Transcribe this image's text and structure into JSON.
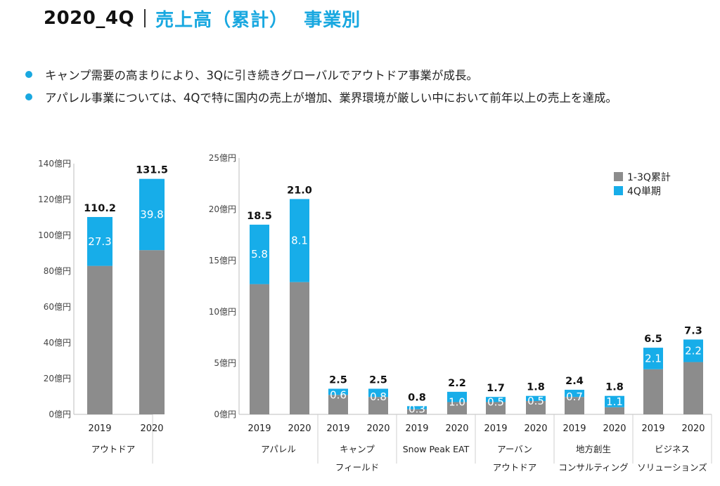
{
  "header": {
    "period": "2020_4Q",
    "title": "売上高（累計）",
    "subtitle": "事業別"
  },
  "bullets": [
    "キャンプ需要の高まりにより、3Qに引き続きグローバルでアウトドア事業が成長。",
    "アパレル事業については、4Qで特に国内の売上が増加、業界環境が厳しい中において前年以上の売上を達成。"
  ],
  "colors": {
    "cumulative": "#8c8c8c",
    "q4": "#17ade9",
    "accent": "#19a8e0"
  },
  "chart_data": [
    {
      "type": "bar",
      "stacked": true,
      "ylim": [
        0,
        140
      ],
      "yticks": [
        "0億円",
        "20億円",
        "40億円",
        "60億円",
        "80億円",
        "100億円",
        "120億円",
        "140億円"
      ],
      "groups": [
        {
          "label": [
            "アウトドア"
          ],
          "years": [
            "2019",
            "2020"
          ],
          "totals": [
            "110.2",
            "131.5"
          ],
          "cumulative": [
            82.9,
            91.7
          ],
          "q4": [
            "27.3",
            "39.8"
          ]
        }
      ]
    },
    {
      "type": "bar",
      "stacked": true,
      "ylim": [
        0,
        25
      ],
      "yticks": [
        "0億円",
        "5億円",
        "10億円",
        "15億円",
        "20億円",
        "25億円"
      ],
      "legend": [
        "1-3Q累計",
        "4Q単期"
      ],
      "legend_position": "top-right",
      "groups": [
        {
          "label": [
            "アパレル"
          ],
          "years": [
            "2019",
            "2020"
          ],
          "totals": [
            "18.5",
            "21.0"
          ],
          "cumulative": [
            12.7,
            12.9
          ],
          "q4": [
            "5.8",
            "8.1"
          ]
        },
        {
          "label": [
            "キャンプ",
            "フィールド"
          ],
          "years": [
            "2019",
            "2020"
          ],
          "totals": [
            "2.5",
            "2.5"
          ],
          "cumulative": [
            1.9,
            1.7
          ],
          "q4": [
            "0.6",
            "0.8"
          ]
        },
        {
          "label": [
            "Snow Peak EAT"
          ],
          "years": [
            "2019",
            "2020"
          ],
          "totals": [
            "0.8",
            "2.2"
          ],
          "cumulative": [
            0.5,
            1.2
          ],
          "q4": [
            "0.3",
            "1.0"
          ]
        },
        {
          "label": [
            "アーバン",
            "アウトドア"
          ],
          "years": [
            "2019",
            "2020"
          ],
          "totals": [
            "1.7",
            "1.8"
          ],
          "cumulative": [
            1.2,
            1.3
          ],
          "q4": [
            "0.5",
            "0.5"
          ]
        },
        {
          "label": [
            "地方創生",
            "コンサルティング"
          ],
          "years": [
            "2019",
            "2020"
          ],
          "totals": [
            "2.4",
            "1.8"
          ],
          "cumulative": [
            1.7,
            0.7
          ],
          "q4": [
            "0.7",
            "1.1"
          ]
        },
        {
          "label": [
            "ビジネス",
            "ソリューションズ"
          ],
          "years": [
            "2019",
            "2020"
          ],
          "totals": [
            "6.5",
            "7.3"
          ],
          "cumulative": [
            4.4,
            5.1
          ],
          "q4": [
            "2.1",
            "2.2"
          ]
        }
      ]
    }
  ]
}
